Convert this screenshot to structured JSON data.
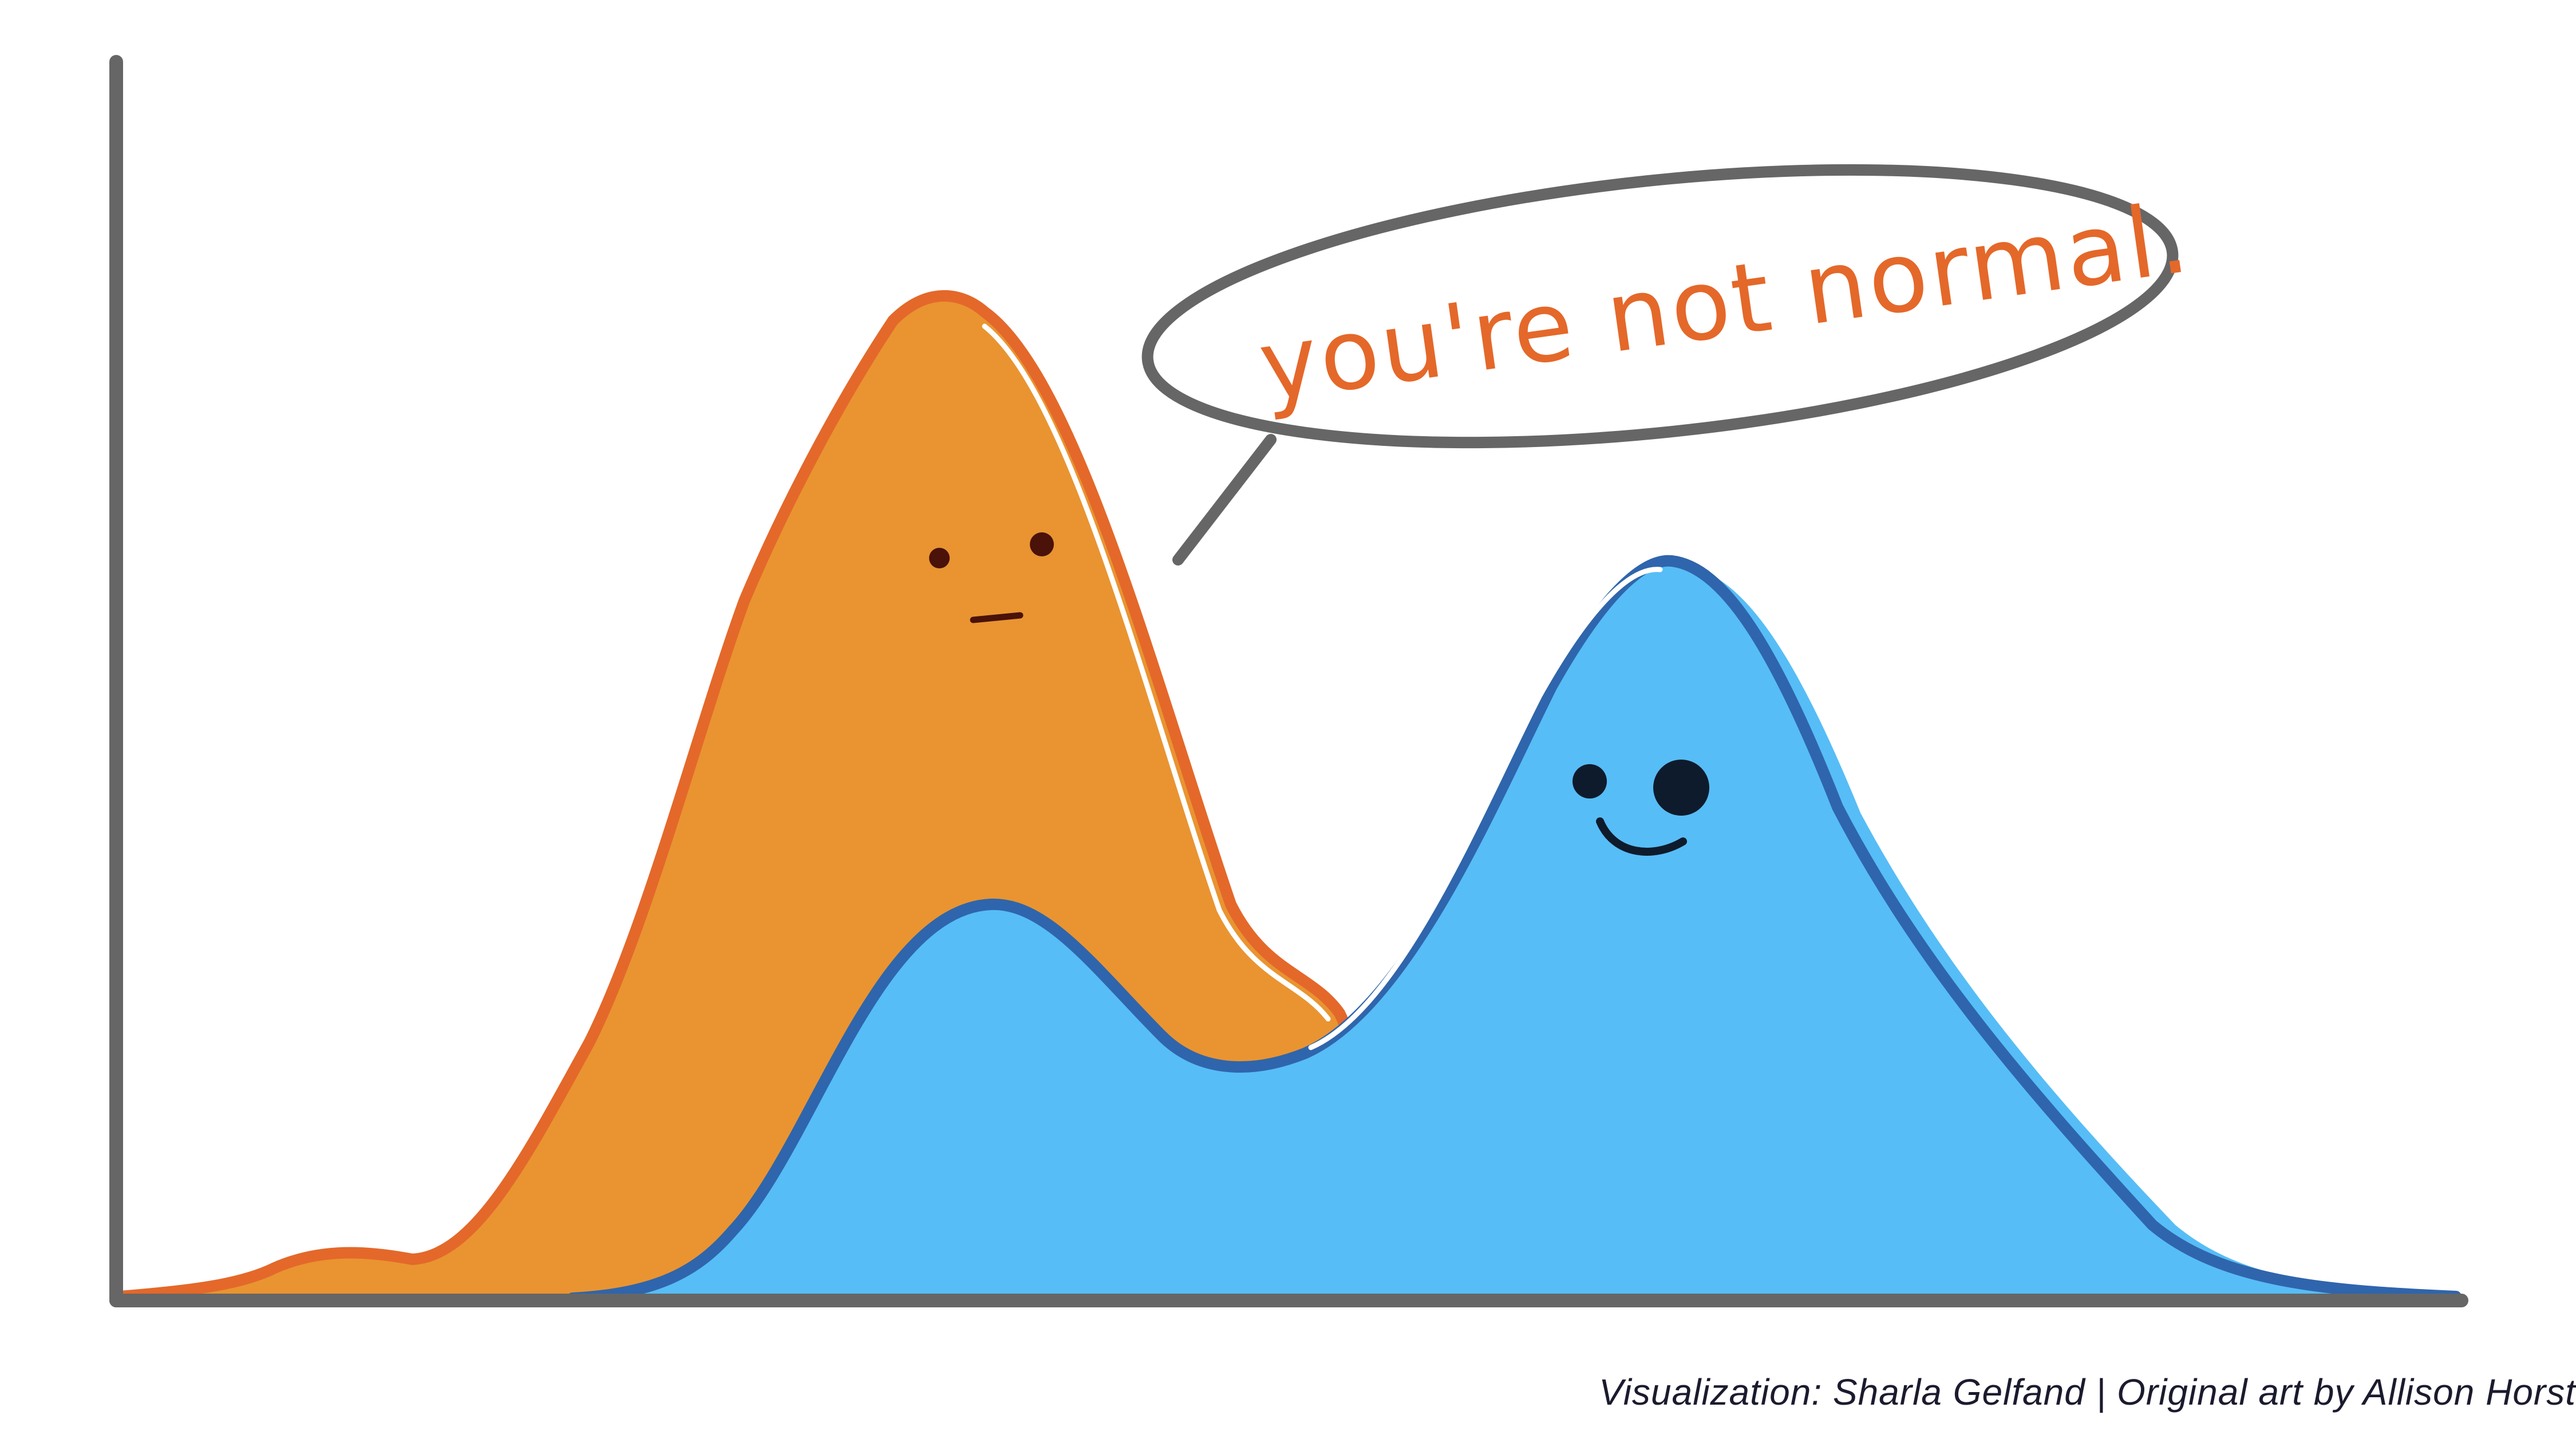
{
  "speech_bubble": {
    "text": "you're not normal."
  },
  "credit": {
    "text": "Visualization: Sharla Gelfand | Original art by Allison Horst"
  },
  "colors": {
    "axis": "#666666",
    "orange_fill": "#E99431",
    "orange_stroke": "#E4682A",
    "blue_fill": "#57BDF6",
    "blue_stroke": "#2F65AC",
    "bubble_text": "#E4682A",
    "orange_face": "#4A1208",
    "blue_face": "#0E1B2D"
  },
  "characters": [
    {
      "name": "orange-distribution",
      "expression": "neutral"
    },
    {
      "name": "blue-distribution",
      "expression": "smiling-wink"
    }
  ]
}
